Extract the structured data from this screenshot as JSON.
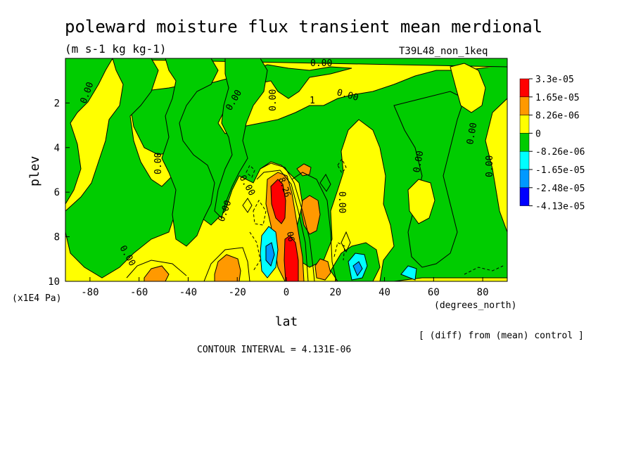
{
  "chart_data": {
    "type": "heatmap",
    "title": "poleward moisture flux transient mean merdional",
    "units": "(m s-1 kg kg-1)",
    "experiment": "T39L48_non_1keq",
    "xlabel": "lat",
    "x_units": "(degrees_north)",
    "ylabel": "plev",
    "y_units": "(x1E4 Pa)",
    "xlim": [
      -90,
      90
    ],
    "ylim": [
      10,
      0
    ],
    "x_ticks": [
      "-80",
      "-60",
      "-40",
      "-20",
      "0",
      "20",
      "40",
      "60",
      "80"
    ],
    "y_ticks": [
      "2",
      "4",
      "6",
      "8",
      "10"
    ],
    "note": "[ (diff) from (mean) control ]",
    "contour_interval": "CONTOUR INTERVAL = 4.131E-06",
    "colorbar": {
      "labels": [
        "3.3e-05",
        "1.65e-05",
        "8.26e-06",
        "0",
        "-8.26e-06",
        "-1.65e-05",
        "-2.48e-05",
        "-4.13e-05"
      ],
      "colors": [
        "#ff0000",
        "#ff9900",
        "#ffff00",
        "#00cc00",
        "#00ffff",
        "#0099ff",
        "#0000ff"
      ]
    },
    "contour_labels": [
      "0.00",
      "0.00",
      "0.00",
      "0.00",
      "0.00",
      "0.00",
      "0.00",
      "0.00",
      "0.00",
      "0.00",
      "0.00",
      "0.00",
      "0.00",
      "8.26",
      "06",
      "1"
    ]
  },
  "palette": {
    "red": "#ff0000",
    "orange": "#ff9900",
    "yellow": "#ffff00",
    "green": "#00cc00",
    "cyan": "#00ffff",
    "blue": "#0099ff",
    "deepblue": "#0000ff"
  }
}
